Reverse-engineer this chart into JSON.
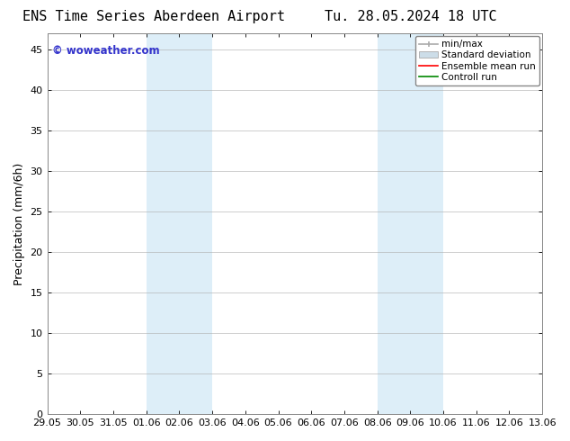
{
  "title_left": "ENS Time Series Aberdeen Airport",
  "title_right": "Tu. 28.05.2024 18 UTC",
  "ylabel": "Precipitation (mm/6h)",
  "watermark": "© woweather.com",
  "background_color": "#ffffff",
  "plot_bg_color": "#ffffff",
  "ylim": [
    0,
    47
  ],
  "yticks": [
    0,
    5,
    10,
    15,
    20,
    25,
    30,
    35,
    40,
    45
  ],
  "x_tick_labels": [
    "29.05",
    "30.05",
    "31.05",
    "01.06",
    "02.06",
    "03.06",
    "04.06",
    "05.06",
    "06.06",
    "07.06",
    "08.06",
    "09.06",
    "10.06",
    "11.06",
    "12.06",
    "13.06"
  ],
  "shaded_regions": [
    {
      "x_start_label": "01.06",
      "x_end_label": "03.06",
      "color": "#ddeef8"
    },
    {
      "x_start_label": "08.06",
      "x_end_label": "10.06",
      "color": "#ddeef8"
    }
  ],
  "legend_items": [
    {
      "label": "min/max",
      "color": "#aaaaaa",
      "style": "errbar"
    },
    {
      "label": "Standard deviation",
      "color": "#ccdde8",
      "style": "fill"
    },
    {
      "label": "Ensemble mean run",
      "color": "#ff0000",
      "style": "line"
    },
    {
      "label": "Controll run",
      "color": "#008800",
      "style": "line"
    }
  ],
  "watermark_color": "#3333cc",
  "title_fontsize": 11,
  "tick_fontsize": 8,
  "ylabel_fontsize": 9,
  "legend_fontsize": 7.5
}
